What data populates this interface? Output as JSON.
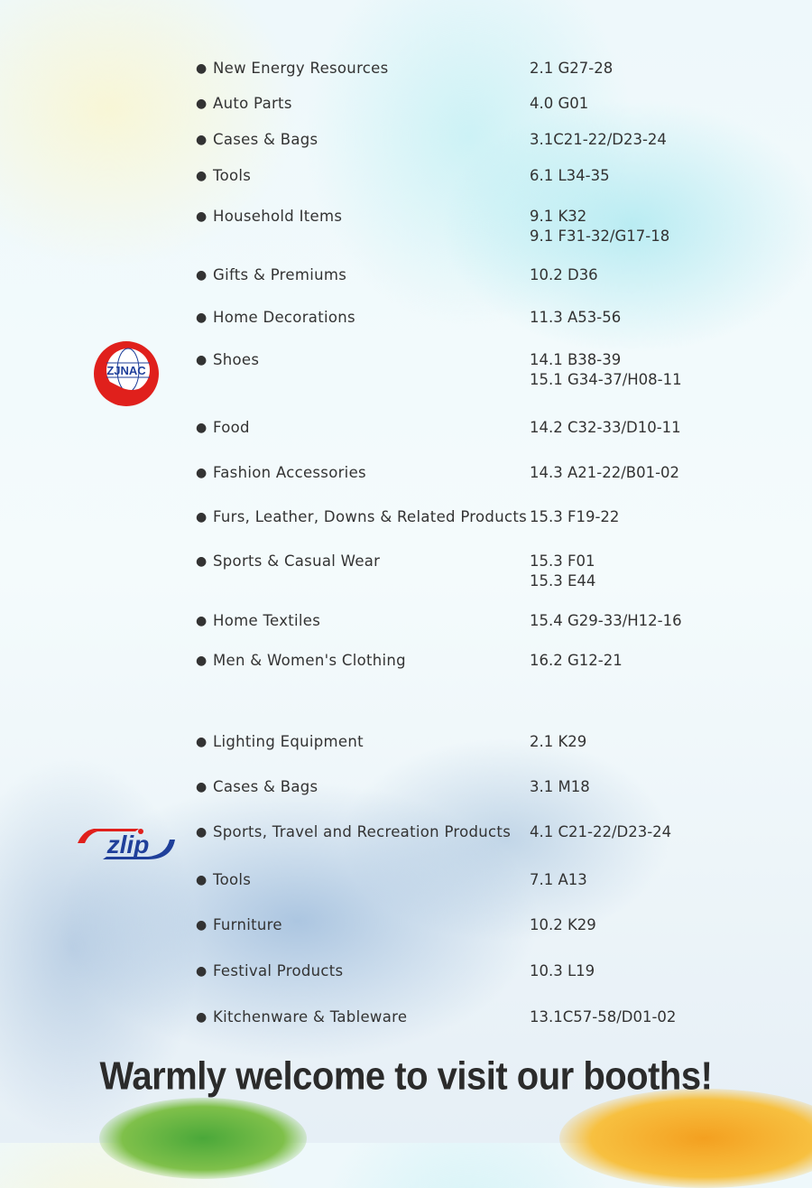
{
  "group1": [
    {
      "name": "New Energy Resources",
      "booths": [
        "2.1 G27-28"
      ]
    },
    {
      "name": "Auto Parts",
      "booths": [
        "4.0 G01"
      ]
    },
    {
      "name": "Cases & Bags",
      "booths": [
        "3.1C21-22/D23-24"
      ]
    },
    {
      "name": "Tools",
      "booths": [
        "6.1 L34-35"
      ]
    },
    {
      "name": "Household Items",
      "booths": [
        "9.1 K32",
        "9.1 F31-32/G17-18"
      ]
    },
    {
      "name": "Gifts & Premiums",
      "booths": [
        "10.2 D36"
      ]
    },
    {
      "name": "Home Decorations",
      "booths": [
        "11.3 A53-56"
      ]
    },
    {
      "name": "Shoes",
      "booths": [
        "14.1 B38-39",
        "15.1 G34-37/H08-11"
      ]
    },
    {
      "name": "Food",
      "booths": [
        "14.2 C32-33/D10-11"
      ]
    },
    {
      "name": "Fashion Accessories",
      "booths": [
        "14.3 A21-22/B01-02"
      ]
    },
    {
      "name": "Furs, Leather, Downs & Related Products",
      "booths": [
        "15.3 F19-22"
      ]
    },
    {
      "name": "Sports & Casual Wear",
      "booths": [
        "15.3 F01",
        "15.3 E44"
      ]
    },
    {
      "name": "Home Textiles",
      "booths": [
        "15.4 G29-33/H12-16"
      ]
    },
    {
      "name": "Men & Women's Clothing",
      "booths": [
        "16.2 G12-21"
      ]
    }
  ],
  "group2": [
    {
      "name": "Lighting Equipment",
      "booths": [
        "2.1 K29"
      ]
    },
    {
      "name": "Cases & Bags",
      "booths": [
        "3.1 M18"
      ]
    },
    {
      "name": "Sports, Travel and Recreation Products",
      "booths": [
        "4.1 C21-22/D23-24"
      ]
    },
    {
      "name": "Tools",
      "booths": [
        "7.1 A13"
      ]
    },
    {
      "name": "Furniture",
      "booths": [
        "10.2 K29"
      ]
    },
    {
      "name": "Festival Products",
      "booths": [
        "10.3 L19"
      ]
    },
    {
      "name": "Kitchenware & Tableware",
      "booths": [
        "13.1C57-58/D01-02"
      ]
    }
  ],
  "logos": {
    "group1": "ZJNAC",
    "group2": "zlip"
  },
  "headline": "Warmly welcome to visit our booths!",
  "bullet": "●",
  "colors": {
    "logo_red": "#e0201c",
    "logo_blue": "#1f3f9a",
    "text": "#333333"
  }
}
